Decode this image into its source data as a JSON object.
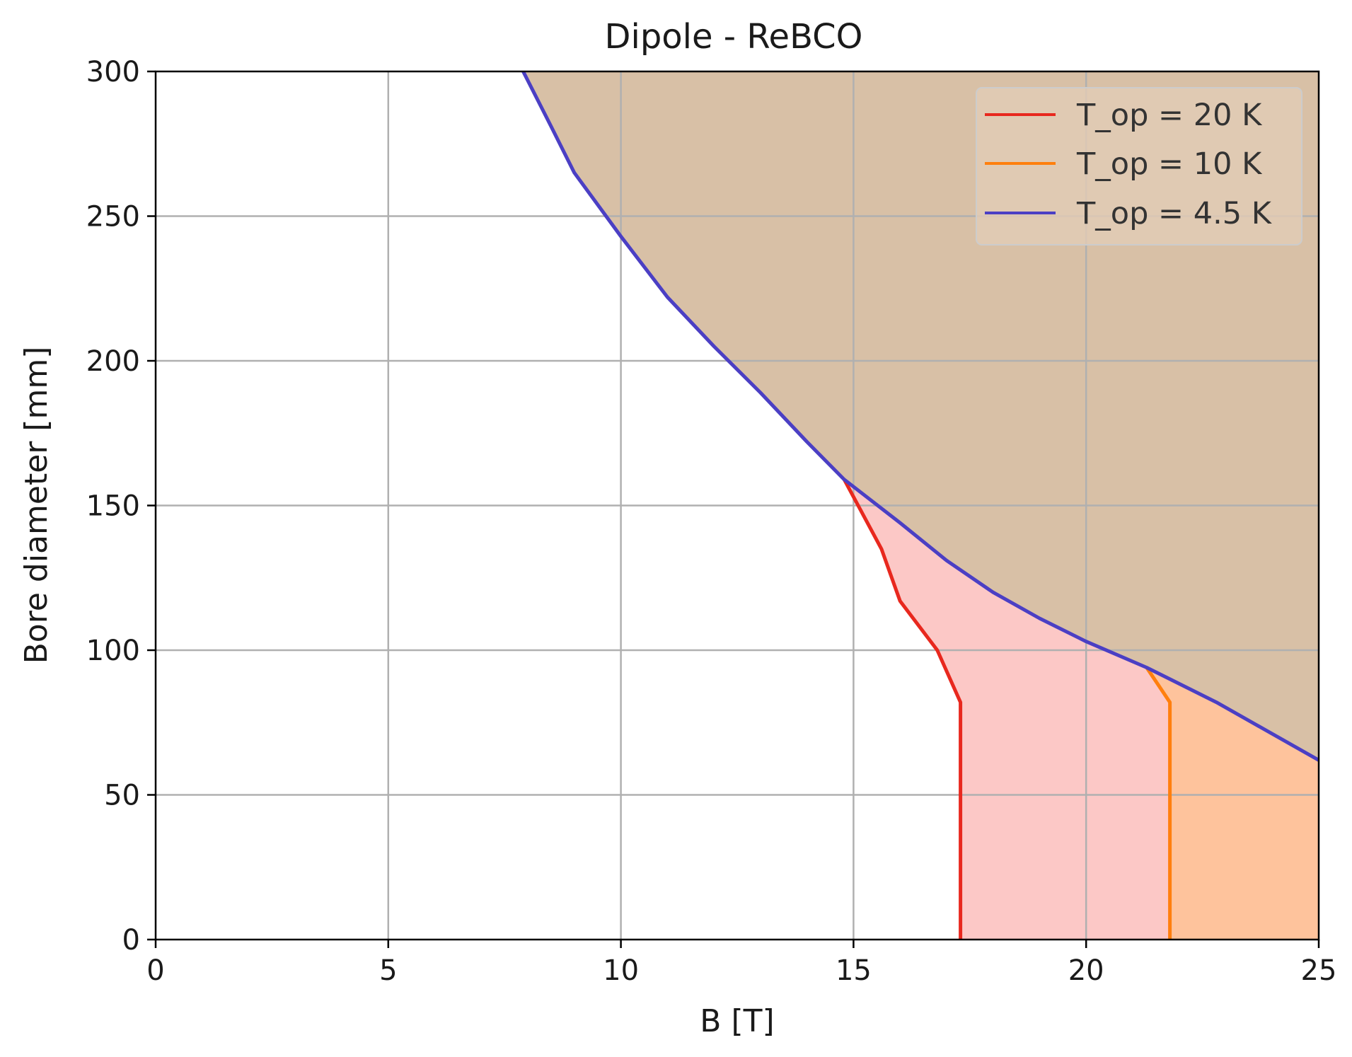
{
  "chart_data": {
    "type": "line",
    "title": "Dipole - ReBCO",
    "xlabel": "B [T]",
    "ylabel": "Bore diameter [mm]",
    "xlim": [
      0,
      25
    ],
    "ylim": [
      0,
      300
    ],
    "xticks": [
      "0",
      "5",
      "10",
      "15",
      "20",
      "25"
    ],
    "yticks": [
      "0",
      "50",
      "100",
      "150",
      "200",
      "250",
      "300"
    ],
    "grid": true,
    "legend_position": "top-right",
    "series": [
      {
        "name": "T_op = 20 K",
        "color": "#e8281e",
        "fill_color": "#fcc8c6",
        "x": [
          17.3,
          17.3,
          16.8,
          16.0,
          15.6,
          14.8
        ],
        "y": [
          0,
          82,
          100,
          117,
          135,
          159
        ]
      },
      {
        "name": "T_op = 10 K",
        "color": "#ff7f0e",
        "fill_color": "#fec39c",
        "x": [
          21.8,
          21.8,
          21.3
        ],
        "y": [
          0,
          82,
          94
        ]
      },
      {
        "name": "T_op = 4.5 K",
        "color": "#4b3fc4",
        "fill_color": "#d8c0a6",
        "x": [
          7.9,
          8.5,
          9.0,
          10.0,
          11.0,
          12.0,
          13.0,
          14.0,
          14.8,
          16.0,
          17.0,
          18.0,
          19.0,
          20.0,
          21.3,
          22.8,
          25.0
        ],
        "y": [
          300,
          281,
          265,
          243,
          222,
          205,
          189,
          172,
          159,
          144,
          131,
          120,
          111,
          103,
          94,
          82,
          62
        ]
      }
    ]
  }
}
